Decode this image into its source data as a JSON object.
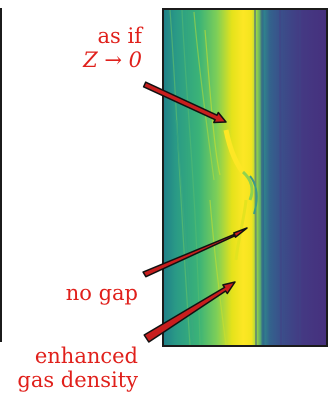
{
  "annotations": [
    {
      "id": "as-if",
      "lines": [
        "as if",
        "Z → 0"
      ]
    },
    {
      "id": "no-gap",
      "lines": [
        "no gap"
      ]
    },
    {
      "id": "enhanced-gas-density",
      "lines": [
        "enhanced",
        "gas density"
      ]
    }
  ],
  "colors": {
    "annotation": "#e0201b",
    "arrow_fill": "#c81e1e",
    "arrow_outline": "#111111",
    "panel_border": "#1b1b1b",
    "colormap": [
      "#440154",
      "#3b528b",
      "#21918c",
      "#5ec962",
      "#fde725"
    ]
  }
}
